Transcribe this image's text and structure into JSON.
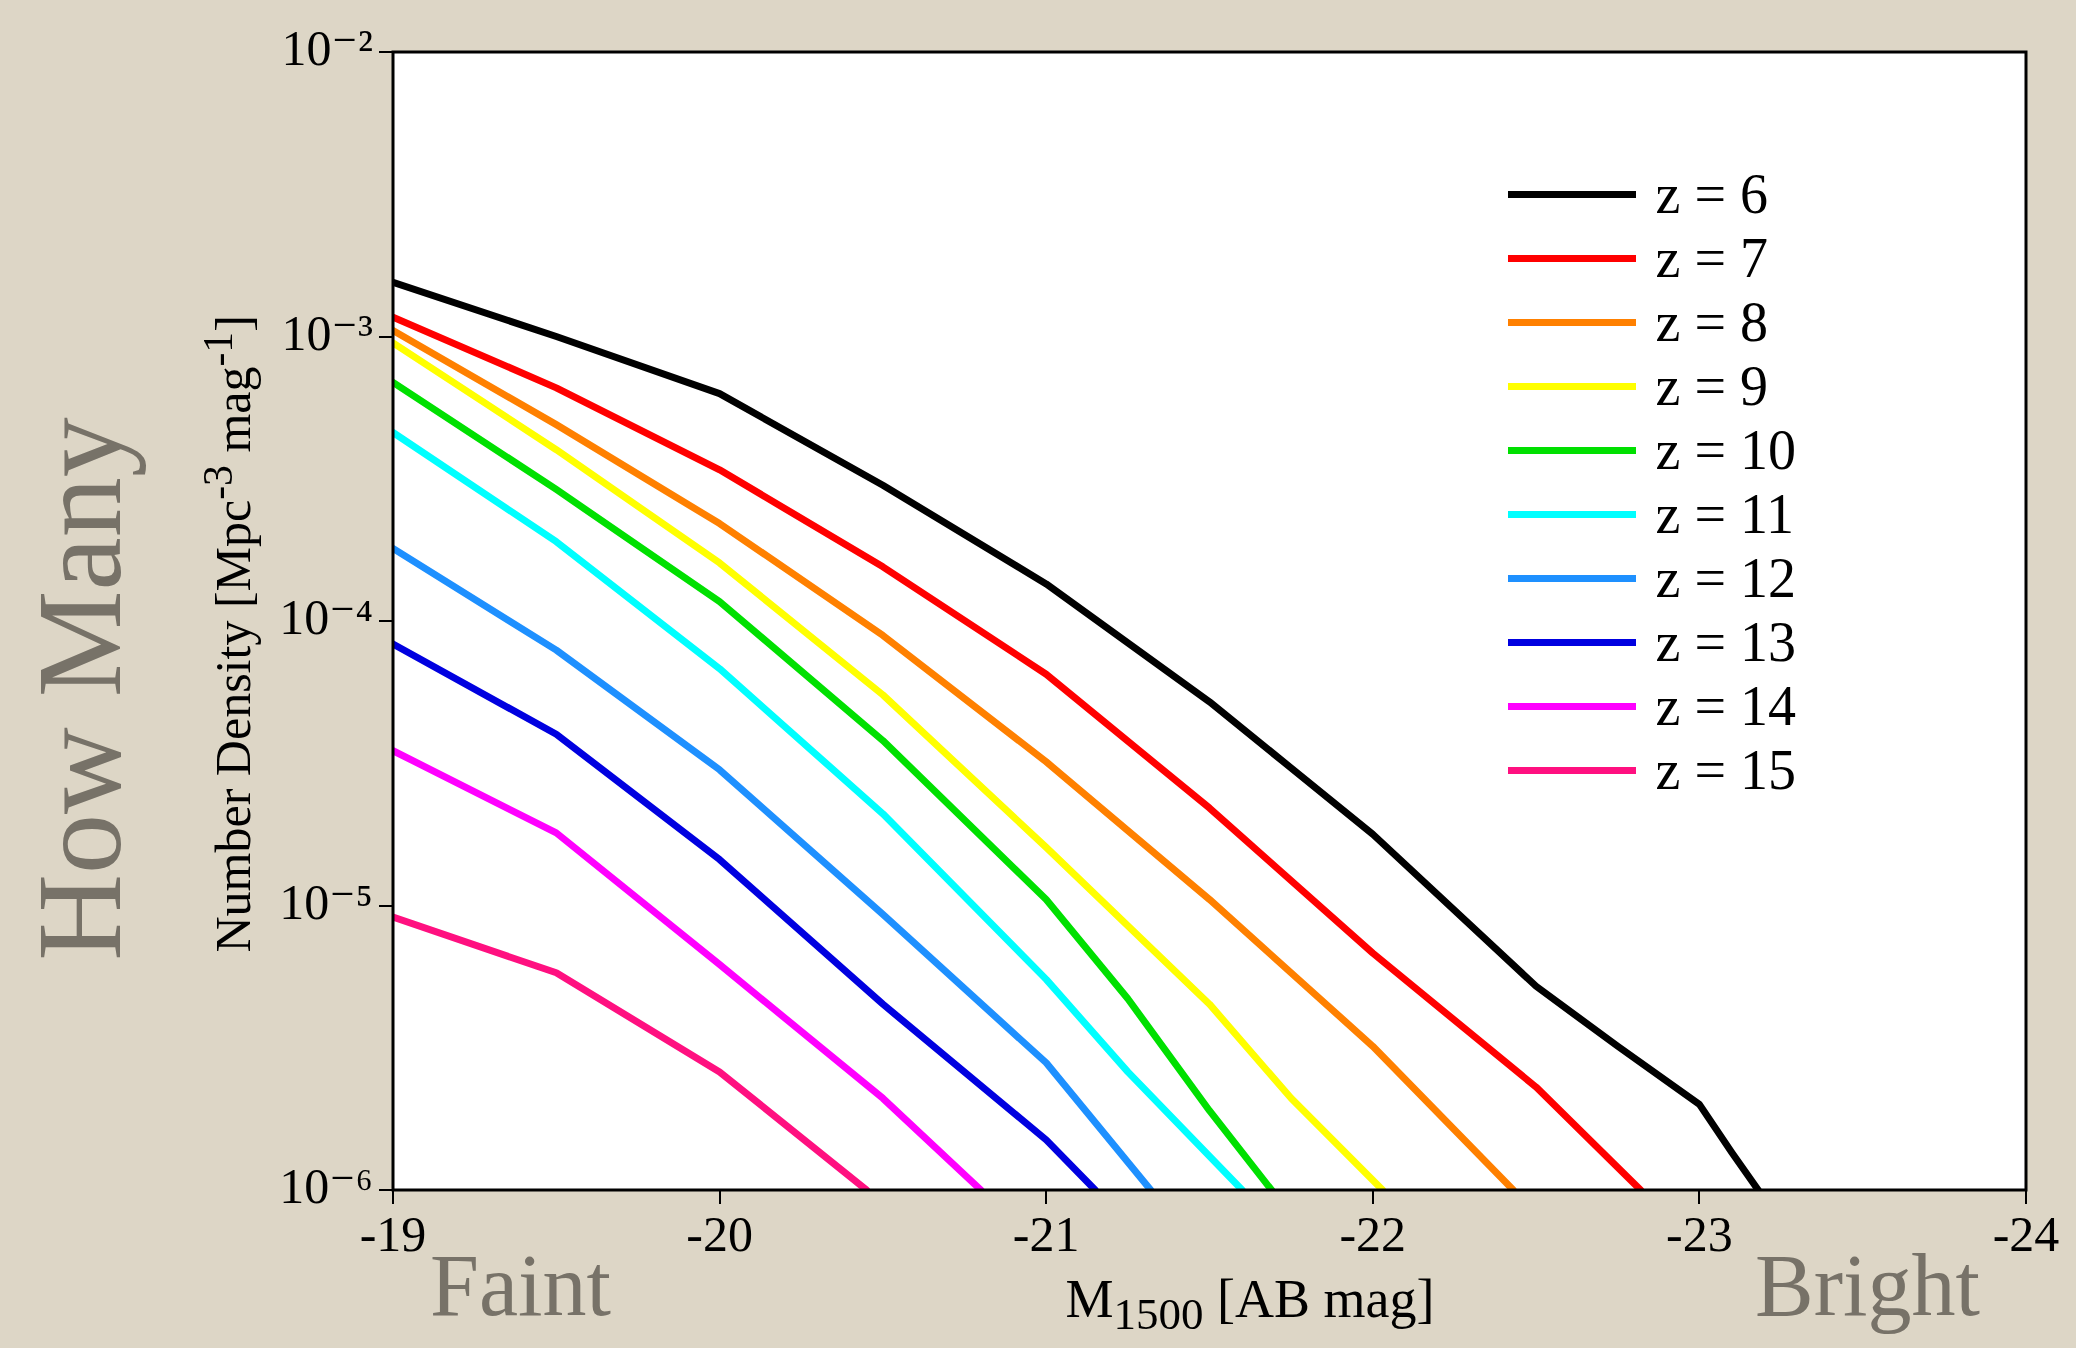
{
  "chart_data": {
    "type": "line",
    "xlabel": "M$_{1500}$ [AB mag]",
    "ylabel": "Number Density [Mpc$^{-3}$ mag$^{-1}$]",
    "annotations": [
      "How Many",
      "Faint",
      "Bright"
    ],
    "log": "y",
    "xlim": [
      -19,
      -24
    ],
    "ylim": [
      1e-06,
      0.01
    ],
    "xticks": [
      -19,
      -20,
      -21,
      -22,
      -23,
      -24
    ],
    "yticks": [
      {
        "value": 1e-06,
        "label": "10⁻⁶"
      },
      {
        "value": 1e-05,
        "label": "10⁻⁵"
      },
      {
        "value": 0.0001,
        "label": "10⁻⁴"
      },
      {
        "value": 0.001,
        "label": "10⁻³"
      },
      {
        "value": 0.01,
        "label": "10⁻²"
      }
    ],
    "legend": "top right",
    "grid": false,
    "marker": "none",
    "line_style": "solid",
    "series": [
      {
        "name": "z = 6",
        "color": "#000000",
        "x": [
          -19,
          -19.5,
          -20,
          -20.5,
          -21,
          -21.5,
          -22,
          -22.5,
          -22.75,
          -23,
          -23.1,
          -23.18
        ],
        "values": [
          0.00155,
          0.001,
          0.00063,
          0.0003,
          0.000135,
          5.2e-05,
          1.78e-05,
          5.2e-06,
          3.2e-06,
          2e-06,
          1.35e-06,
          1e-06
        ]
      },
      {
        "name": "z = 7",
        "color": "#ff0000",
        "x": [
          -19,
          -19.5,
          -20,
          -20.5,
          -21,
          -21.5,
          -22,
          -22.5,
          -22.82
        ],
        "values": [
          0.00117,
          0.00066,
          0.00034,
          0.000155,
          6.5e-05,
          2.2e-05,
          6.8e-06,
          2.3e-06,
          1e-06
        ]
      },
      {
        "name": "z = 8",
        "color": "#ff8000",
        "x": [
          -19,
          -19.5,
          -20,
          -20.5,
          -21,
          -21.5,
          -22,
          -22.43
        ],
        "values": [
          0.00105,
          0.00049,
          0.00022,
          8.9e-05,
          3.2e-05,
          1.05e-05,
          3.2e-06,
          1e-06
        ]
      },
      {
        "name": "z = 9",
        "color": "#ffff00",
        "x": [
          -19,
          -19.5,
          -20,
          -20.5,
          -21,
          -21.5,
          -21.75,
          -22.03
        ],
        "values": [
          0.00095,
          0.0004,
          0.00016,
          5.5e-05,
          1.6e-05,
          4.5e-06,
          2.1e-06,
          1e-06
        ]
      },
      {
        "name": "z = 10",
        "color": "#00e000",
        "x": [
          -19,
          -19.5,
          -20,
          -20.5,
          -21,
          -21.25,
          -21.5,
          -21.69
        ],
        "values": [
          0.00069,
          0.00029,
          0.000117,
          3.8e-05,
          1.05e-05,
          4.7e-06,
          1.9e-06,
          1e-06
        ]
      },
      {
        "name": "z = 11",
        "color": "#00ffff",
        "x": [
          -19,
          -19.5,
          -20,
          -20.5,
          -21,
          -21.25,
          -21.6
        ],
        "values": [
          0.00046,
          0.00019,
          6.8e-05,
          2.1e-05,
          5.5e-06,
          2.6e-06,
          1e-06
        ]
      },
      {
        "name": "z = 12",
        "color": "#1e90ff",
        "x": [
          -19,
          -19.5,
          -20,
          -20.5,
          -21,
          -21.32
        ],
        "values": [
          0.00018,
          7.9e-05,
          3e-05,
          9.3e-06,
          2.8e-06,
          1e-06
        ]
      },
      {
        "name": "z = 13",
        "color": "#0000e0",
        "x": [
          -19,
          -19.5,
          -20,
          -20.5,
          -21,
          -21.15
        ],
        "values": [
          8.3e-05,
          4e-05,
          1.45e-05,
          4.5e-06,
          1.5e-06,
          1e-06
        ]
      },
      {
        "name": "z = 14",
        "color": "#ff00ff",
        "x": [
          -19,
          -19.5,
          -20,
          -20.5,
          -20.8
        ],
        "values": [
          3.5e-05,
          1.8e-05,
          6.2e-06,
          2.1e-06,
          1e-06
        ]
      },
      {
        "name": "z = 15",
        "color": "#ff1080",
        "x": [
          -19,
          -19.5,
          -20,
          -20.45
        ],
        "values": [
          9.1e-06,
          5.8e-06,
          2.6e-06,
          1e-06
        ]
      }
    ]
  }
}
